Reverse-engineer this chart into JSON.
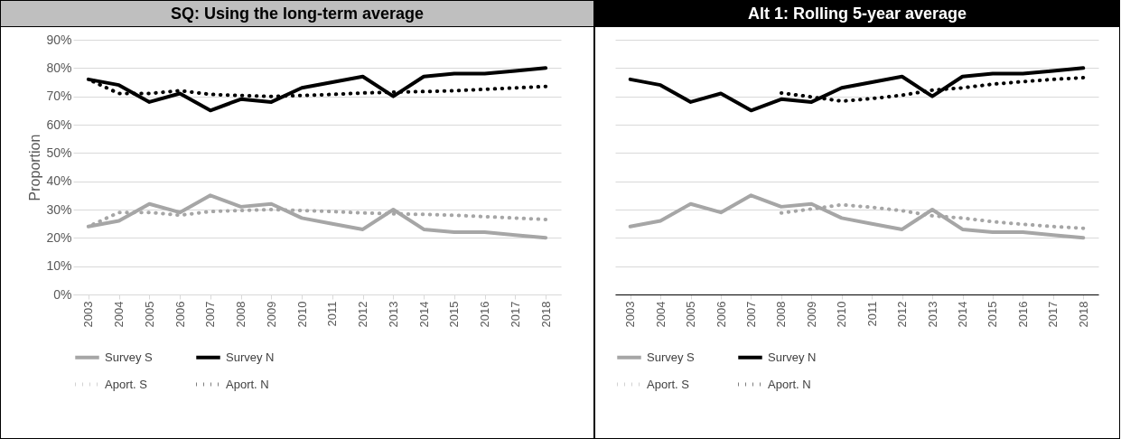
{
  "chart_data": [
    {
      "type": "line",
      "title": "SQ:  Using the long-term average",
      "ylabel": "Proportion",
      "categories": [
        "2003",
        "2004",
        "2005",
        "2006",
        "2007",
        "2008",
        "2009",
        "2010",
        "2011",
        "2012",
        "2013",
        "2014",
        "2015",
        "2016",
        "2017",
        "2018"
      ],
      "series": [
        {
          "name": "Survey S",
          "color": "#a6a6a6",
          "line_style": "solid",
          "values": [
            24,
            26,
            32,
            29,
            35,
            31,
            32,
            27,
            25,
            23,
            30,
            23,
            22,
            22,
            21,
            20
          ]
        },
        {
          "name": "Survey N",
          "color": "#000000",
          "line_style": "solid",
          "values": [
            76,
            74,
            68,
            71,
            65,
            69,
            68,
            73,
            75,
            77,
            70,
            77,
            78,
            78,
            79,
            80
          ]
        },
        {
          "name": "Aport. S",
          "color": "#a6a6a6",
          "line_style": "dotted",
          "values": [
            24,
            29,
            29,
            28,
            29.3,
            29.7,
            30,
            29.7,
            29.3,
            28.8,
            28.5,
            28.3,
            28,
            27.5,
            27,
            26.5
          ]
        },
        {
          "name": "Aport. N",
          "color": "#000000",
          "line_style": "dotted",
          "values": [
            76,
            71,
            71,
            72,
            70.7,
            70.3,
            70,
            70.3,
            70.7,
            71.2,
            71.5,
            71.7,
            72,
            72.5,
            73,
            73.5
          ]
        }
      ],
      "ylim": [
        0,
        90
      ],
      "yticks": [
        {
          "value": 0,
          "label": "0%"
        },
        {
          "value": 10,
          "label": "10%"
        },
        {
          "value": 20,
          "label": "20%"
        },
        {
          "value": 30,
          "label": "30%"
        },
        {
          "value": 40,
          "label": "40%"
        },
        {
          "value": 50,
          "label": "50%"
        },
        {
          "value": 60,
          "label": "60%"
        },
        {
          "value": 70,
          "label": "70%"
        },
        {
          "value": 80,
          "label": "80%"
        },
        {
          "value": 90,
          "label": "90%"
        }
      ],
      "grid": "y",
      "legend": "bottom"
    },
    {
      "type": "line",
      "title": "Alt 1: Rolling 5-year average",
      "categories": [
        "2003",
        "2004",
        "2005",
        "2006",
        "2007",
        "2008",
        "2009",
        "2010",
        "2011",
        "2012",
        "2013",
        "2014",
        "2015",
        "2016",
        "2017",
        "2018"
      ],
      "series": [
        {
          "name": "Survey S",
          "color": "#a6a6a6",
          "line_style": "solid",
          "values": [
            24,
            26,
            32,
            29,
            35,
            31,
            32,
            27,
            25,
            23,
            30,
            23,
            22,
            22,
            21,
            20
          ]
        },
        {
          "name": "Survey N",
          "color": "#000000",
          "line_style": "solid",
          "values": [
            76,
            74,
            68,
            71,
            65,
            69,
            68,
            73,
            75,
            77,
            70,
            77,
            78,
            78,
            79,
            80
          ]
        },
        {
          "name": "Aport. S",
          "color": "#a6a6a6",
          "line_style": "dotted",
          "values": [
            null,
            null,
            null,
            null,
            null,
            28.8,
            30.2,
            31.7,
            30.8,
            29.6,
            27.8,
            27,
            25.7,
            24.8,
            24,
            23.4
          ]
        },
        {
          "name": "Aport. N",
          "color": "#000000",
          "line_style": "dotted",
          "values": [
            null,
            null,
            null,
            null,
            null,
            71.2,
            69.8,
            68.3,
            69.2,
            70.4,
            72.2,
            73,
            74.3,
            75.2,
            76,
            76.6
          ]
        }
      ],
      "ylim": [
        0,
        90
      ],
      "yticks": [
        0,
        10,
        20,
        30,
        40,
        50,
        60,
        70,
        80,
        90
      ],
      "tick_labels": "x",
      "grid": "y",
      "legend": "bottom"
    }
  ]
}
